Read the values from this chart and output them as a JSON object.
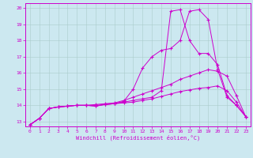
{
  "xlabel": "Windchill (Refroidissement éolien,°C)",
  "bg_color": "#cce8f0",
  "line_color": "#cc00cc",
  "grid_color": "#aacccc",
  "xlim": [
    -0.5,
    23.5
  ],
  "ylim": [
    12.7,
    20.3
  ],
  "xticks": [
    0,
    1,
    2,
    3,
    4,
    5,
    6,
    7,
    8,
    9,
    10,
    11,
    12,
    13,
    14,
    15,
    16,
    17,
    18,
    19,
    20,
    21,
    22,
    23
  ],
  "yticks": [
    13,
    14,
    15,
    16,
    17,
    18,
    19,
    20
  ],
  "line1_x": [
    0,
    1,
    2,
    3,
    4,
    5,
    6,
    7,
    8,
    9,
    10,
    11,
    12,
    13,
    14,
    15,
    16,
    17,
    18,
    19,
    20,
    21,
    22,
    23
  ],
  "line1_y": [
    12.8,
    13.2,
    13.8,
    13.9,
    13.95,
    14.0,
    14.0,
    14.0,
    14.05,
    14.1,
    14.15,
    14.2,
    14.3,
    14.4,
    14.55,
    14.7,
    14.85,
    14.95,
    15.05,
    15.1,
    15.2,
    14.9,
    14.2,
    13.3
  ],
  "line2_x": [
    0,
    1,
    2,
    3,
    4,
    5,
    6,
    7,
    8,
    9,
    10,
    11,
    12,
    13,
    14,
    15,
    16,
    17,
    18,
    19,
    20,
    21,
    22,
    23
  ],
  "line2_y": [
    12.8,
    13.2,
    13.8,
    13.9,
    13.95,
    14.0,
    14.0,
    14.05,
    14.1,
    14.15,
    14.3,
    14.5,
    14.7,
    14.9,
    15.1,
    15.3,
    15.6,
    15.8,
    16.0,
    16.2,
    16.1,
    15.8,
    14.6,
    13.3
  ],
  "line3_x": [
    0,
    1,
    2,
    3,
    4,
    5,
    6,
    7,
    8,
    9,
    10,
    11,
    12,
    13,
    14,
    15,
    16,
    17,
    18,
    19,
    20,
    21,
    22,
    23
  ],
  "line3_y": [
    12.8,
    13.2,
    13.8,
    13.9,
    13.95,
    14.0,
    14.0,
    13.95,
    14.05,
    14.1,
    14.2,
    14.3,
    14.4,
    14.5,
    14.9,
    19.8,
    19.9,
    18.0,
    17.2,
    17.2,
    16.5,
    14.6,
    14.0,
    13.3
  ],
  "line4_x": [
    0,
    1,
    2,
    3,
    4,
    5,
    6,
    7,
    8,
    9,
    10,
    11,
    12,
    13,
    14,
    15,
    16,
    17,
    18,
    19,
    20,
    21,
    22,
    23
  ],
  "line4_y": [
    12.8,
    13.2,
    13.8,
    13.9,
    13.95,
    14.0,
    14.0,
    13.95,
    14.05,
    14.1,
    14.25,
    15.0,
    16.3,
    17.0,
    17.4,
    17.5,
    18.0,
    19.8,
    19.9,
    19.3,
    16.2,
    14.5,
    14.0,
    13.3
  ]
}
